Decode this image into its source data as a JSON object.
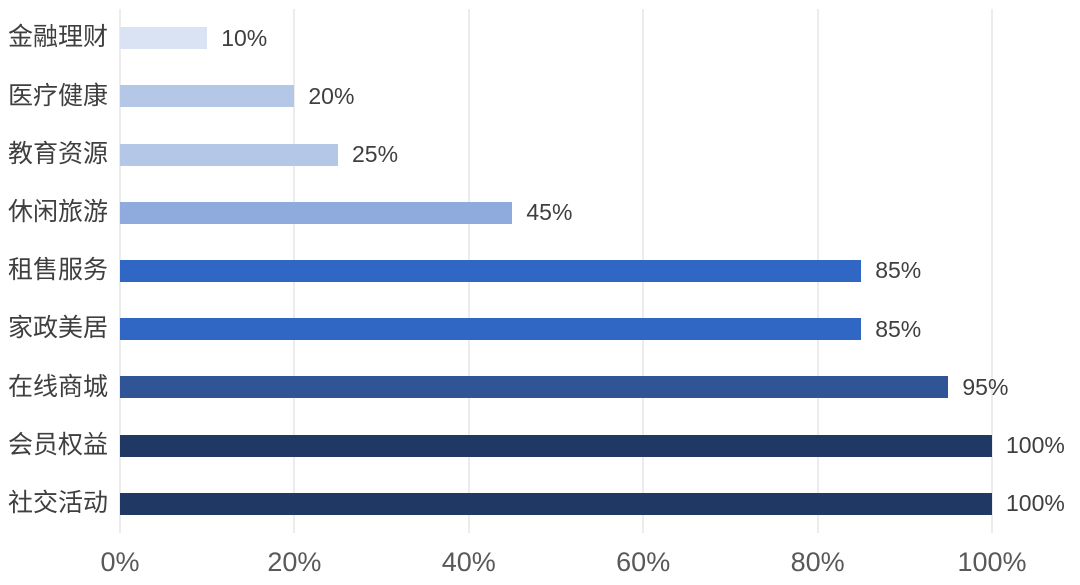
{
  "chart_data": {
    "type": "bar",
    "orientation": "horizontal",
    "title": "",
    "xlabel": "",
    "ylabel": "",
    "categories": [
      "金融理财",
      "医疗健康",
      "教育资源",
      "休闲旅游",
      "租售服务",
      "家政美居",
      "在线商城",
      "会员权益",
      "社交活动"
    ],
    "values": [
      10,
      20,
      25,
      45,
      85,
      85,
      95,
      100,
      100
    ],
    "value_labels": [
      "10%",
      "20%",
      "25%",
      "45%",
      "85%",
      "85%",
      "95%",
      "100%",
      "100%"
    ],
    "bar_colors": [
      "#DAE3F3",
      "#B4C7E7",
      "#B4C7E7",
      "#8FAADC",
      "#3067C5",
      "#3067C5",
      "#2F5597",
      "#1F3864",
      "#1F3864"
    ],
    "x_ticks": [
      "0%",
      "20%",
      "40%",
      "60%",
      "80%",
      "100%"
    ],
    "x_tick_values": [
      0,
      20,
      40,
      60,
      80,
      100
    ],
    "xlim": [
      0,
      100
    ],
    "grid": "vertical-only",
    "gridline_color": "#D9D9D9",
    "category_label_color": "#3F3F3F",
    "value_label_color": "#3F3F3F",
    "axis_label_color": "#595959",
    "background_color": "#FFFFFF",
    "legend": "none"
  }
}
